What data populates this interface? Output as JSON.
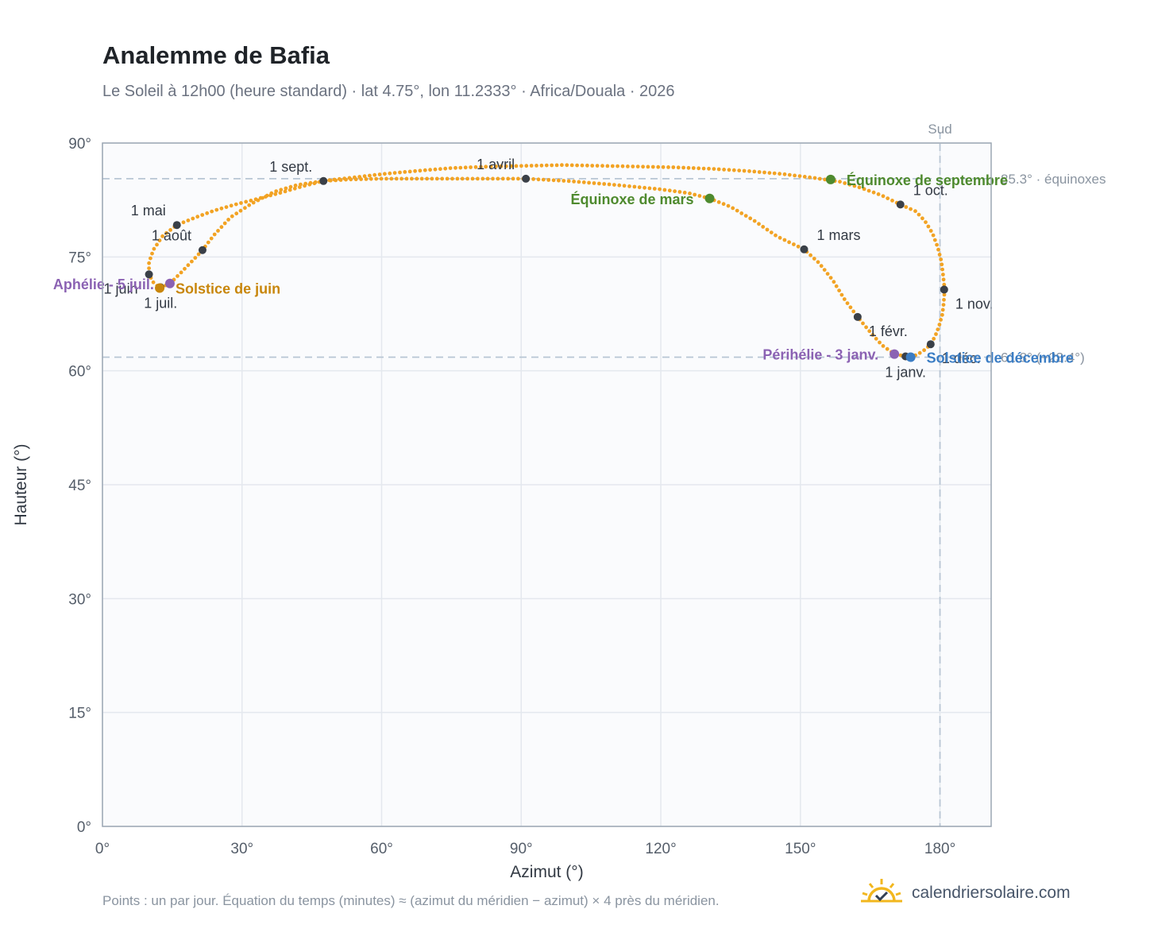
{
  "header": {
    "title": "Analemme de Bafia",
    "subtitle": "Le Soleil à 12h00 (heure standard) · lat 4.75°, lon 11.2333° · Africa/Douala · 2026"
  },
  "footer": {
    "note": "Points : un par jour. Équation du temps (minutes) ≈ (azimut du méridien − azimut) × 4 près du méridien.",
    "brand": "calendriersolaire.com",
    "brand_icon": "sun-check-icon"
  },
  "colors": {
    "curve": "#f2a324",
    "month_marker": "#3a4048",
    "equinox": "#4e8a2e",
    "june_solstice": "#c8860b",
    "december_solstice": "#3b7dc4",
    "aphelion_perihelion": "#8b62b3",
    "reference_line": "#b8c6d4",
    "plot_background": "#fafbfd",
    "grid": "#e4e8ee",
    "frame": "#9ca7b4"
  },
  "chart_data": {
    "type": "scatter",
    "xlabel": "Azimut (°)",
    "ylabel": "Hauteur (°)",
    "xlim": [
      0,
      191
    ],
    "ylim": [
      0,
      90
    ],
    "x_ticks": [
      "0°",
      "30°",
      "60°",
      "90°",
      "120°",
      "150°",
      "180°"
    ],
    "y_ticks": [
      "0°",
      "15°",
      "30°",
      "45°",
      "60°",
      "75°",
      "90°"
    ],
    "grid": true,
    "reference_lines": {
      "meridian": {
        "azimuth": 180,
        "label": "Sud"
      },
      "equinox_altitude": {
        "altitude": 85.3,
        "label": "85.3° · équinoxes"
      },
      "december_solstice_altitude": {
        "altitude": 61.8,
        "label": "61.8° (−23.4°)"
      }
    },
    "analemma_path": [
      [
        173.7,
        61.8
      ],
      [
        175.3,
        62.2
      ],
      [
        176.8,
        62.8
      ],
      [
        178.0,
        63.5
      ],
      [
        179.0,
        64.6
      ],
      [
        179.8,
        65.9
      ],
      [
        180.5,
        67.4
      ],
      [
        180.8,
        68.9
      ],
      [
        181.0,
        70.7
      ],
      [
        180.7,
        72.5
      ],
      [
        180.3,
        74.4
      ],
      [
        179.5,
        76.3
      ],
      [
        178.4,
        78.1
      ],
      [
        176.8,
        79.7
      ],
      [
        174.8,
        81.0
      ],
      [
        171.5,
        81.9
      ],
      [
        167.5,
        83.1
      ],
      [
        163.0,
        84.1
      ],
      [
        158.5,
        84.9
      ],
      [
        153.0,
        85.4
      ],
      [
        146.5,
        85.9
      ],
      [
        139.0,
        86.3
      ],
      [
        131.0,
        86.6
      ],
      [
        123.0,
        86.8
      ],
      [
        115.0,
        86.9
      ],
      [
        107.0,
        87.0
      ],
      [
        99.0,
        87.1
      ],
      [
        91.0,
        87.0
      ],
      [
        83.0,
        86.9
      ],
      [
        75.0,
        86.7
      ],
      [
        67.0,
        86.3
      ],
      [
        60.0,
        85.9
      ],
      [
        54.5,
        85.5
      ],
      [
        50.0,
        85.2
      ],
      [
        47.5,
        85.0
      ],
      [
        43.0,
        84.3
      ],
      [
        38.0,
        83.4
      ],
      [
        33.0,
        82.6
      ],
      [
        28.5,
        81.9
      ],
      [
        24.0,
        81.1
      ],
      [
        20.0,
        80.2
      ],
      [
        16.0,
        79.2
      ],
      [
        13.0,
        77.8
      ],
      [
        11.0,
        76.0
      ],
      [
        10.0,
        74.3
      ],
      [
        10.0,
        72.7
      ],
      [
        11.0,
        71.6
      ],
      [
        12.3,
        70.9
      ],
      [
        14.5,
        71.5
      ],
      [
        17.0,
        73.0
      ],
      [
        19.5,
        74.6
      ],
      [
        21.5,
        75.9
      ],
      [
        24.0,
        77.9
      ],
      [
        27.5,
        80.2
      ],
      [
        32.0,
        82.0
      ],
      [
        37.0,
        83.6
      ],
      [
        42.0,
        84.5
      ],
      [
        47.5,
        85.0
      ],
      [
        53.0,
        85.2
      ],
      [
        60.0,
        85.3
      ],
      [
        70.0,
        85.3
      ],
      [
        80.0,
        85.3
      ],
      [
        91.0,
        85.3
      ],
      [
        100.0,
        85.0
      ],
      [
        110.0,
        84.5
      ],
      [
        120.0,
        83.9
      ],
      [
        126.0,
        83.4
      ],
      [
        130.5,
        82.7
      ],
      [
        135.0,
        81.6
      ],
      [
        140.0,
        79.8
      ],
      [
        145.0,
        77.7
      ],
      [
        150.8,
        76.0
      ],
      [
        154.0,
        74.2
      ],
      [
        157.0,
        71.9
      ],
      [
        159.5,
        69.4
      ],
      [
        162.3,
        67.1
      ],
      [
        165.0,
        65.1
      ],
      [
        167.5,
        63.4
      ],
      [
        170.2,
        62.2
      ],
      [
        173.7,
        61.8
      ]
    ],
    "month_markers": [
      {
        "label": "1 janv.",
        "azimuth": 172.6,
        "altitude": 61.9,
        "anchor": "below"
      },
      {
        "label": "1 févr.",
        "azimuth": 162.3,
        "altitude": 67.1,
        "anchor": "below-right"
      },
      {
        "label": "1 mars",
        "azimuth": 150.8,
        "altitude": 76.0,
        "anchor": "above-right"
      },
      {
        "label": "1 avril",
        "azimuth": 91.0,
        "altitude": 85.3,
        "anchor": "above-left"
      },
      {
        "label": "1 mai",
        "azimuth": 16.0,
        "altitude": 79.2,
        "anchor": "above-left"
      },
      {
        "label": "1 juin",
        "azimuth": 10.0,
        "altitude": 72.7,
        "anchor": "below-left"
      },
      {
        "label": "1 juil.",
        "azimuth": 12.5,
        "altitude": 71.0,
        "anchor": "below"
      },
      {
        "label": "1 août",
        "azimuth": 21.5,
        "altitude": 75.9,
        "anchor": "above-left"
      },
      {
        "label": "1 sept.",
        "azimuth": 47.5,
        "altitude": 85.0,
        "anchor": "above-left"
      },
      {
        "label": "1 oct.",
        "azimuth": 171.5,
        "altitude": 81.9,
        "anchor": "right"
      },
      {
        "label": "1 nov.",
        "azimuth": 180.9,
        "altitude": 70.7,
        "anchor": "below-right"
      },
      {
        "label": "1 déc.",
        "azimuth": 178.0,
        "altitude": 63.5,
        "anchor": "below-right"
      }
    ],
    "events": [
      {
        "label": "Équinoxe de mars",
        "azimuth": 130.5,
        "altitude": 82.7,
        "kind": "equinox",
        "anchor": "left"
      },
      {
        "label": "Équinoxe de septembre",
        "azimuth": 156.5,
        "altitude": 85.2,
        "kind": "equinox",
        "anchor": "right"
      },
      {
        "label": "Solstice de juin",
        "azimuth": 12.3,
        "altitude": 70.9,
        "kind": "june_solstice",
        "anchor": "right"
      },
      {
        "label": "Solstice de décembre",
        "azimuth": 173.7,
        "altitude": 61.8,
        "kind": "december_solstice",
        "anchor": "right"
      },
      {
        "label": "Aphélie - 5 juil.",
        "azimuth": 14.5,
        "altitude": 71.5,
        "kind": "aphelion_perihelion",
        "anchor": "left"
      },
      {
        "label": "Périhélie - 3 janv.",
        "azimuth": 170.2,
        "altitude": 62.2,
        "kind": "aphelion_perihelion",
        "anchor": "left"
      }
    ]
  }
}
